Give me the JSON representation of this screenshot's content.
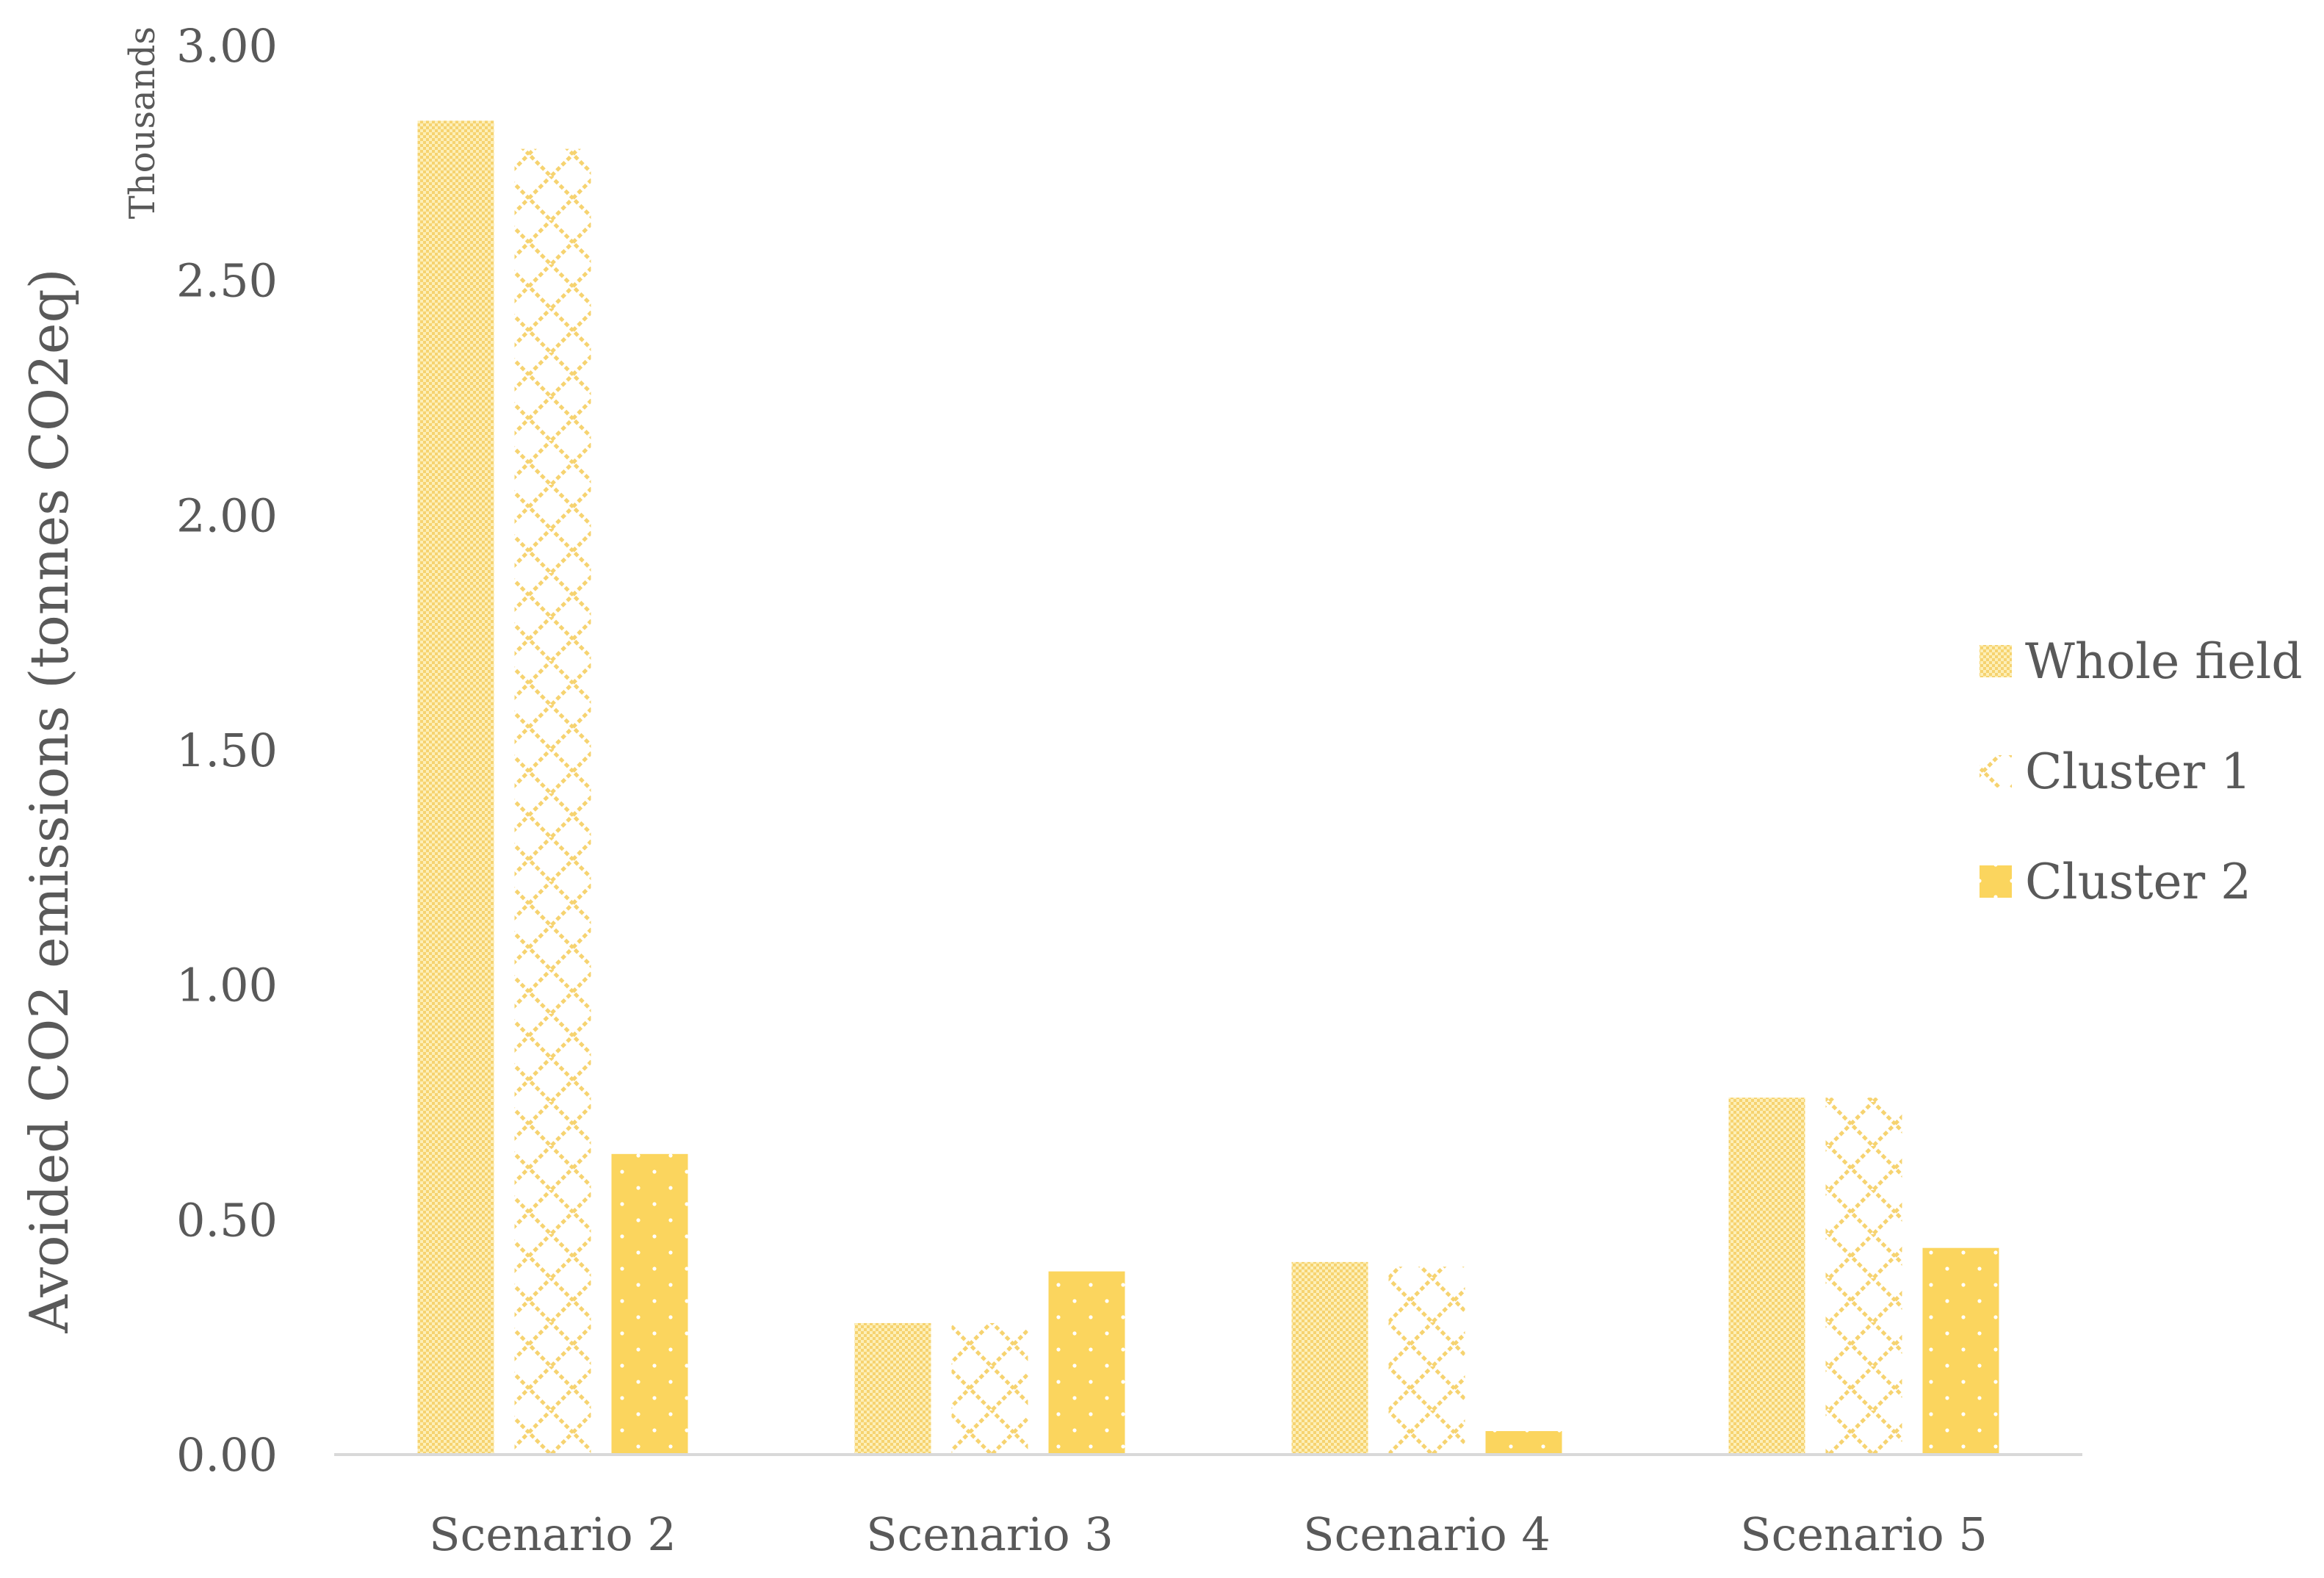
{
  "chart_data": {
    "type": "bar",
    "title": "",
    "xlabel": "",
    "ylabel": "Avoided CO2 emissions (tonnes CO2eq)",
    "y_unit_label": "Thousands",
    "ylim": [
      0,
      3.0
    ],
    "yticks": [
      "0.00",
      "0.50",
      "1.00",
      "1.50",
      "2.00",
      "2.50",
      "3.00"
    ],
    "grid": false,
    "legend_position": "right",
    "categories": [
      "Scenario 2",
      "Scenario 3",
      "Scenario 4",
      "Scenario 5"
    ],
    "series": [
      {
        "name": "Whole field",
        "pattern": "fine-checker",
        "color": "#F9D66B",
        "values": [
          2.84,
          0.28,
          0.41,
          0.76
        ]
      },
      {
        "name": "Cluster 1",
        "pattern": "diamond-lattice",
        "color": "#F9D66B",
        "values": [
          2.78,
          0.28,
          0.4,
          0.76
        ]
      },
      {
        "name": "Cluster 2",
        "pattern": "dotted-solid",
        "color": "#FBD55E",
        "values": [
          0.64,
          0.39,
          0.05,
          0.44
        ]
      }
    ]
  }
}
